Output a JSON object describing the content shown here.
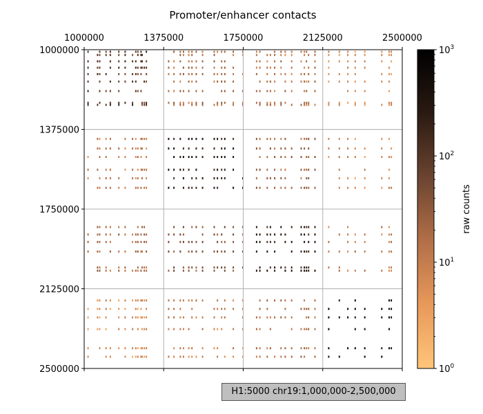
{
  "chart_data": {
    "type": "heatmap",
    "title": "Promoter/enhancer contacts",
    "x_ticks": [
      "1000000",
      "1375000",
      "1750000",
      "2125000",
      "2500000"
    ],
    "y_ticks": [
      "1000000",
      "1375000",
      "1750000",
      "2125000",
      "2500000"
    ],
    "xlim": [
      1000000,
      2500000
    ],
    "ylim": [
      1000000,
      2500000
    ],
    "y_inverted": true,
    "x_axis_position": "top",
    "grid": true,
    "colorbar": {
      "label": "raw counts",
      "scale": "log",
      "range": [
        1,
        1000
      ],
      "ticks": [
        "10",
        "10",
        "10",
        "10"
      ],
      "tick_exponents": [
        "0",
        "1",
        "2",
        "3"
      ],
      "colormap": [
        "#ffc57a",
        "#e8995a",
        "#b26f48",
        "#6b4430",
        "#2a1a12",
        "#000000"
      ]
    },
    "row_positions": [
      1005000,
      1020000,
      1050000,
      1080000,
      1110000,
      1145000,
      1190000,
      1245000,
      1255000,
      1415000,
      1460000,
      1500000,
      1560000,
      1600000,
      1645000,
      1830000,
      1865000,
      1900000,
      1945000,
      2020000,
      2035000,
      2175000,
      2215000,
      2255000,
      2310000,
      2400000,
      2440000
    ],
    "col_positions": [
      1015000,
      1060000,
      1070000,
      1100000,
      1120000,
      1160000,
      1190000,
      1225000,
      1240000,
      1250000,
      1265000,
      1270000,
      1280000,
      1290000,
      1395000,
      1420000,
      1450000,
      1465000,
      1490000,
      1505000,
      1525000,
      1555000,
      1610000,
      1625000,
      1645000,
      1660000,
      1700000,
      1745000,
      1810000,
      1825000,
      1860000,
      1875000,
      1895000,
      1925000,
      1945000,
      1975000,
      2020000,
      2035000,
      2045000,
      2055000,
      2085000,
      2150000,
      2200000,
      2240000,
      2275000,
      2320000,
      2400000,
      2435000,
      2445000
    ],
    "value_blocks": [
      {
        "rows": [
          1000000,
          1375000
        ],
        "cols": [
          1000000,
          1300000
        ],
        "level": 100
      },
      {
        "rows": [
          1000000,
          1375000
        ],
        "cols": [
          1375000,
          1750000
        ],
        "level": 20
      },
      {
        "rows": [
          1000000,
          1375000
        ],
        "cols": [
          1750000,
          2125000
        ],
        "level": 15
      },
      {
        "rows": [
          1000000,
          1375000
        ],
        "cols": [
          2125000,
          2500000
        ],
        "level": 6
      },
      {
        "rows": [
          1375000,
          1750000
        ],
        "cols": [
          1000000,
          1375000
        ],
        "level": 12
      },
      {
        "rows": [
          1375000,
          1750000
        ],
        "cols": [
          1375000,
          1750000
        ],
        "level": 300
      },
      {
        "rows": [
          1375000,
          1750000
        ],
        "cols": [
          1750000,
          2125000
        ],
        "level": 25
      },
      {
        "rows": [
          1375000,
          1750000
        ],
        "cols": [
          2125000,
          2500000
        ],
        "level": 8
      },
      {
        "rows": [
          1750000,
          2125000
        ],
        "cols": [
          1000000,
          1375000
        ],
        "level": 20
      },
      {
        "rows": [
          1750000,
          2125000
        ],
        "cols": [
          1375000,
          1750000
        ],
        "level": 40
      },
      {
        "rows": [
          1750000,
          2125000
        ],
        "cols": [
          1750000,
          2125000
        ],
        "level": 250
      },
      {
        "rows": [
          1750000,
          2125000
        ],
        "cols": [
          2125000,
          2500000
        ],
        "level": 12
      },
      {
        "rows": [
          2125000,
          2500000
        ],
        "cols": [
          1000000,
          1375000
        ],
        "level": 6
      },
      {
        "rows": [
          2125000,
          2500000
        ],
        "cols": [
          1375000,
          1750000
        ],
        "level": 10
      },
      {
        "rows": [
          2125000,
          2500000
        ],
        "cols": [
          1750000,
          2125000
        ],
        "level": 15
      },
      {
        "rows": [
          2125000,
          2500000
        ],
        "cols": [
          2125000,
          2500000
        ],
        "level": 500
      }
    ]
  },
  "info_box": {
    "text": "H1:5000 chr19:1,000,000-2,500,000"
  }
}
